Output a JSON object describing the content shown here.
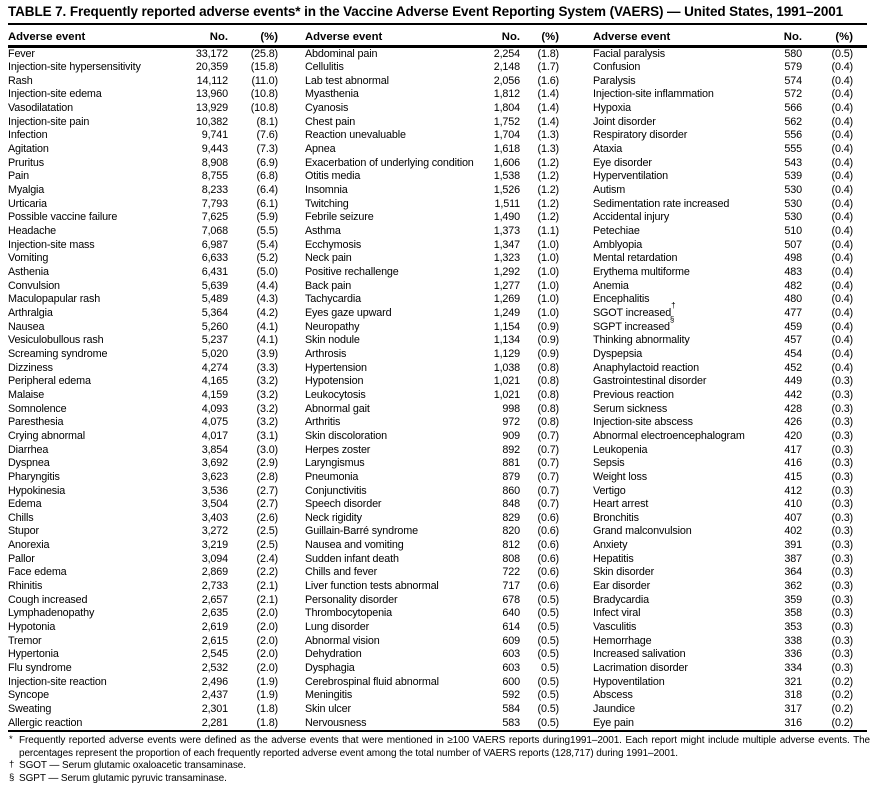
{
  "title": "TABLE 7. Frequently reported adverse events* in the Vaccine Adverse Event Reporting System (VAERS) — United States, 1991–2001",
  "table": {
    "col_headers": [
      "Adverse event",
      "No.",
      "(%)"
    ],
    "groups": [
      {
        "rows": [
          [
            "Fever",
            "33,172",
            "(25.8)"
          ],
          [
            "Injection-site hypersensitivity",
            "20,359",
            "(15.8)"
          ],
          [
            "Rash",
            "14,112",
            "(11.0)"
          ],
          [
            "Injection-site edema",
            "13,960",
            "(10.8)"
          ],
          [
            "Vasodilatation",
            "13,929",
            "(10.8)"
          ],
          [
            "Injection-site pain",
            "10,382",
            "(8.1)"
          ],
          [
            "Infection",
            "9,741",
            "(7.6)"
          ],
          [
            "Agitation",
            "9,443",
            "(7.3)"
          ],
          [
            "Pruritus",
            "8,908",
            "(6.9)"
          ],
          [
            "Pain",
            "8,755",
            "(6.8)"
          ],
          [
            "Myalgia",
            "8,233",
            "(6.4)"
          ],
          [
            "Urticaria",
            "7,793",
            "(6.1)"
          ],
          [
            "Possible vaccine failure",
            "7,625",
            "(5.9)"
          ],
          [
            "Headache",
            "7,068",
            "(5.5)"
          ],
          [
            "Injection-site mass",
            "6,987",
            "(5.4)"
          ],
          [
            "Vomiting",
            "6,633",
            "(5.2)"
          ],
          [
            "Asthenia",
            "6,431",
            "(5.0)"
          ],
          [
            "Convulsion",
            "5,639",
            "(4.4)"
          ],
          [
            "Maculopapular rash",
            "5,489",
            "(4.3)"
          ],
          [
            "Arthralgia",
            "5,364",
            "(4.2)"
          ],
          [
            "Nausea",
            "5,260",
            "(4.1)"
          ],
          [
            "Vesiculobullous rash",
            "5,237",
            "(4.1)"
          ],
          [
            "Screaming syndrome",
            "5,020",
            "(3.9)"
          ],
          [
            "Dizziness",
            "4,274",
            "(3.3)"
          ],
          [
            "Peripheral edema",
            "4,165",
            "(3.2)"
          ],
          [
            "Malaise",
            "4,159",
            "(3.2)"
          ],
          [
            "Somnolence",
            "4,093",
            "(3.2)"
          ],
          [
            "Paresthesia",
            "4,075",
            "(3.2)"
          ],
          [
            "Crying abnormal",
            "4,017",
            "(3.1)"
          ],
          [
            "Diarrhea",
            "3,854",
            "(3.0)"
          ],
          [
            "Dyspnea",
            "3,692",
            "(2.9)"
          ],
          [
            "Pharyngitis",
            "3,623",
            "(2.8)"
          ],
          [
            "Hypokinesia",
            "3,536",
            "(2.7)"
          ],
          [
            "Edema",
            "3,504",
            "(2.7)"
          ],
          [
            "Chills",
            "3,403",
            "(2.6)"
          ],
          [
            "Stupor",
            "3,272",
            "(2.5)"
          ],
          [
            "Anorexia",
            "3,219",
            "(2.5)"
          ],
          [
            "Pallor",
            "3,094",
            "(2.4)"
          ],
          [
            "Face edema",
            "2,869",
            "(2.2)"
          ],
          [
            "Rhinitis",
            "2,733",
            "(2.1)"
          ],
          [
            "Cough increased",
            "2,657",
            "(2.1)"
          ],
          [
            "Lymphadenopathy",
            "2,635",
            "(2.0)"
          ],
          [
            "Hypotonia",
            "2,619",
            "(2.0)"
          ],
          [
            "Tremor",
            "2,615",
            "(2.0)"
          ],
          [
            "Hypertonia",
            "2,545",
            "(2.0)"
          ],
          [
            "Flu syndrome",
            "2,532",
            "(2.0)"
          ],
          [
            "Injection-site reaction",
            "2,496",
            "(1.9)"
          ],
          [
            "Syncope",
            "2,437",
            "(1.9)"
          ],
          [
            "Sweating",
            "2,301",
            "(1.8)"
          ],
          [
            "Allergic reaction",
            "2,281",
            "(1.8)"
          ]
        ]
      },
      {
        "rows": [
          [
            "Abdominal pain",
            "2,254",
            "(1.8)"
          ],
          [
            "Cellulitis",
            "2,148",
            "(1.7)"
          ],
          [
            "Lab test abnormal",
            "2,056",
            "(1.6)"
          ],
          [
            "Myasthenia",
            "1,812",
            "(1.4)"
          ],
          [
            "Cyanosis",
            "1,804",
            "(1.4)"
          ],
          [
            "Chest pain",
            "1,752",
            "(1.4)"
          ],
          [
            "Reaction unevaluable",
            "1,704",
            "(1.3)"
          ],
          [
            "Apnea",
            "1,618",
            "(1.3)"
          ],
          [
            "Exacerbation of underlying condition",
            "1,606",
            "(1.2)"
          ],
          [
            "Otitis media",
            "1,538",
            "(1.2)"
          ],
          [
            "Insomnia",
            "1,526",
            "(1.2)"
          ],
          [
            "Twitching",
            "1,511",
            "(1.2)"
          ],
          [
            "Febrile seizure",
            "1,490",
            "(1.2)"
          ],
          [
            "Asthma",
            "1,373",
            "(1.1)"
          ],
          [
            "Ecchymosis",
            "1,347",
            "(1.0)"
          ],
          [
            "Neck pain",
            "1,323",
            "(1.0)"
          ],
          [
            "Positive rechallenge",
            "1,292",
            "(1.0)"
          ],
          [
            "Back pain",
            "1,277",
            "(1.0)"
          ],
          [
            "Tachycardia",
            "1,269",
            "(1.0)"
          ],
          [
            "Eyes gaze upward",
            "1,249",
            "(1.0)"
          ],
          [
            "Neuropathy",
            "1,154",
            "(0.9)"
          ],
          [
            "Skin nodule",
            "1,134",
            "(0.9)"
          ],
          [
            "Arthrosis",
            "1,129",
            "(0.9)"
          ],
          [
            "Hypertension",
            "1,038",
            "(0.8)"
          ],
          [
            "Hypotension",
            "1,021",
            "(0.8)"
          ],
          [
            "Leukocytosis",
            "1,021",
            "(0.8)"
          ],
          [
            "Abnormal gait",
            "998",
            "(0.8)"
          ],
          [
            "Arthritis",
            "972",
            "(0.8)"
          ],
          [
            "Skin discoloration",
            "909",
            "(0.7)"
          ],
          [
            "Herpes zoster",
            "892",
            "(0.7)"
          ],
          [
            "Laryngismus",
            "881",
            "(0.7)"
          ],
          [
            "Pneumonia",
            "879",
            "(0.7)"
          ],
          [
            "Conjunctivitis",
            "860",
            "(0.7)"
          ],
          [
            "Speech disorder",
            "848",
            "(0.7)"
          ],
          [
            "Neck rigidity",
            "829",
            "(0.6)"
          ],
          [
            "Guillain-Barré syndrome",
            "820",
            "(0.6)"
          ],
          [
            "Nausea and vomiting",
            "812",
            "(0.6)"
          ],
          [
            "Sudden infant death",
            "808",
            "(0.6)"
          ],
          [
            "Chills and fever",
            "722",
            "(0.6)"
          ],
          [
            "Liver function tests abnormal",
            "717",
            "(0.6)"
          ],
          [
            "Personality disorder",
            "678",
            "(0.5)"
          ],
          [
            "Thrombocytopenia",
            "640",
            "(0.5)"
          ],
          [
            "Lung disorder",
            "614",
            "(0.5)"
          ],
          [
            "Abnormal vision",
            "609",
            "(0.5)"
          ],
          [
            "Dehydration",
            "603",
            "(0.5)"
          ],
          [
            "Dysphagia",
            "603",
            "0.5)"
          ],
          [
            "Cerebrospinal fluid abnormal",
            "600",
            "(0.5)"
          ],
          [
            "Meningitis",
            "592",
            "(0.5)"
          ],
          [
            "Skin ulcer",
            "584",
            "(0.5)"
          ],
          [
            "Nervousness",
            "583",
            "(0.5)"
          ]
        ]
      },
      {
        "rows": [
          [
            "Facial paralysis",
            "580",
            "(0.5)"
          ],
          [
            "Confusion",
            "579",
            "(0.4)"
          ],
          [
            "Paralysis",
            "574",
            "(0.4)"
          ],
          [
            "Injection-site inflammation",
            "572",
            "(0.4)"
          ],
          [
            "Hypoxia",
            "566",
            "(0.4)"
          ],
          [
            "Joint disorder",
            "562",
            "(0.4)"
          ],
          [
            "Respiratory disorder",
            "556",
            "(0.4)"
          ],
          [
            "Ataxia",
            "555",
            "(0.4)"
          ],
          [
            "Eye disorder",
            "543",
            "(0.4)"
          ],
          [
            "Hyperventilation",
            "539",
            "(0.4)"
          ],
          [
            "Autism",
            "530",
            "(0.4)"
          ],
          [
            "Sedimentation rate increased",
            "530",
            "(0.4)"
          ],
          [
            "Accidental injury",
            "530",
            "(0.4)"
          ],
          [
            "Petechiae",
            "510",
            "(0.4)"
          ],
          [
            "Amblyopia",
            "507",
            "(0.4)"
          ],
          [
            "Mental retardation",
            "498",
            "(0.4)"
          ],
          [
            "Erythema multiforme",
            "483",
            "(0.4)"
          ],
          [
            "Anemia",
            "482",
            "(0.4)"
          ],
          [
            "Encephalitis",
            "480",
            "(0.4)"
          ],
          [
            "SGOT increased†",
            "477",
            "(0.4)"
          ],
          [
            "SGPT increased§",
            "459",
            "(0.4)"
          ],
          [
            "Thinking abnormality",
            "457",
            "(0.4)"
          ],
          [
            "Dyspepsia",
            "454",
            "(0.4)"
          ],
          [
            "Anaphylactoid reaction",
            "452",
            "(0.4)"
          ],
          [
            "Gastrointestinal disorder",
            "449",
            "(0.3)"
          ],
          [
            "Previous reaction",
            "442",
            "(0.3)"
          ],
          [
            "Serum sickness",
            "428",
            "(0.3)"
          ],
          [
            "Injection-site abscess",
            "426",
            "(0.3)"
          ],
          [
            "Abnormal electroencephalogram",
            "420",
            "(0.3)"
          ],
          [
            "Leukopenia",
            "417",
            "(0.3)"
          ],
          [
            "Sepsis",
            "416",
            "(0.3)"
          ],
          [
            "Weight loss",
            "415",
            "(0.3)"
          ],
          [
            "Vertigo",
            "412",
            "(0.3)"
          ],
          [
            "Heart arrest",
            "410",
            "(0.3)"
          ],
          [
            "Bronchitis",
            "407",
            "(0.3)"
          ],
          [
            "Grand malconvulsion",
            "402",
            "(0.3)"
          ],
          [
            "Anxiety",
            "391",
            "(0.3)"
          ],
          [
            "Hepatitis",
            "387",
            "(0.3)"
          ],
          [
            "Skin disorder",
            "364",
            "(0.3)"
          ],
          [
            "Ear disorder",
            "362",
            "(0.3)"
          ],
          [
            "Bradycardia",
            "359",
            "(0.3)"
          ],
          [
            "Infect viral",
            "358",
            "(0.3)"
          ],
          [
            "Vasculitis",
            "353",
            "(0.3)"
          ],
          [
            "Hemorrhage",
            "338",
            "(0.3)"
          ],
          [
            "Increased salivation",
            "336",
            "(0.3)"
          ],
          [
            "Lacrimation disorder",
            "334",
            "(0.3)"
          ],
          [
            "Hypoventilation",
            "321",
            "(0.2)"
          ],
          [
            "Abscess",
            "318",
            "(0.2)"
          ],
          [
            "Jaundice",
            "317",
            "(0.2)"
          ],
          [
            "Eye pain",
            "316",
            "(0.2)"
          ]
        ]
      }
    ]
  },
  "footnotes": [
    {
      "marker": "*",
      "text": "Frequently reported adverse events were defined as the adverse events that were mentioned in ≥100 VAERS reports during1991–2001. Each report might include multiple adverse events. The percentages represent the proportion of each frequently reported adverse event among the total number of VAERS reports (128,717) during 1991–2001."
    },
    {
      "marker": "†",
      "text": "SGOT — Serum glutamic oxaloacetic transaminase."
    },
    {
      "marker": "§",
      "text": "SGPT — Serum glutamic pyruvic transaminase."
    }
  ]
}
